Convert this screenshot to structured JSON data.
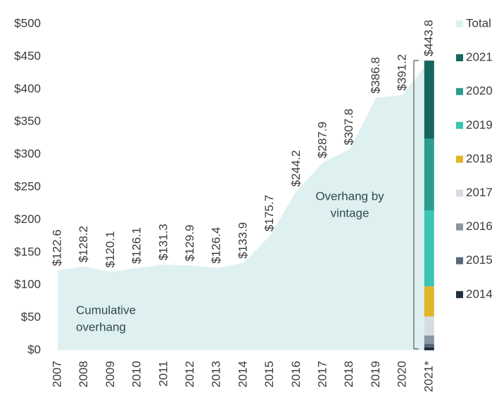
{
  "chart_data": {
    "type": "area",
    "categories": [
      "2007",
      "2008",
      "2009",
      "2010",
      "2011",
      "2012",
      "2013",
      "2014",
      "2015",
      "2016",
      "2017",
      "2018",
      "2019",
      "2020",
      "2021*"
    ],
    "series": [
      {
        "name": "Total",
        "color": "#dff0f0",
        "values": [
          122.6,
          128.2,
          120.1,
          126.1,
          131.3,
          129.9,
          126.4,
          133.9,
          175.7,
          244.2,
          287.9,
          307.8,
          386.8,
          391.2,
          443.8
        ],
        "value_labels": [
          "$122.6",
          "$128.2",
          "$120.1",
          "$126.1",
          "$131.3",
          "$129.9",
          "$126.4",
          "$133.9",
          "$175.7",
          "$244.2",
          "$287.9",
          "$307.8",
          "$386.8",
          "$391.2",
          "$443.8"
        ]
      },
      {
        "name": "2021",
        "color": "#14665e",
        "values": [
          null,
          null,
          null,
          null,
          null,
          null,
          null,
          null,
          null,
          null,
          null,
          null,
          null,
          null,
          119.5
        ]
      },
      {
        "name": "2020",
        "color": "#2a9d8f",
        "values": [
          null,
          null,
          null,
          null,
          null,
          null,
          null,
          null,
          null,
          null,
          null,
          null,
          null,
          null,
          109.9
        ]
      },
      {
        "name": "2019",
        "color": "#3cc4b4",
        "values": [
          null,
          null,
          null,
          null,
          null,
          null,
          null,
          null,
          null,
          null,
          null,
          null,
          null,
          null,
          116.4
        ]
      },
      {
        "name": "2018",
        "color": "#e0b52a",
        "values": [
          null,
          null,
          null,
          null,
          null,
          null,
          null,
          null,
          null,
          null,
          null,
          null,
          null,
          null,
          46.3
        ]
      },
      {
        "name": "2017",
        "color": "#d6dce3",
        "values": [
          null,
          null,
          null,
          null,
          null,
          null,
          null,
          null,
          null,
          null,
          null,
          null,
          null,
          null,
          29.1
        ]
      },
      {
        "name": "2016",
        "color": "#8a96a3",
        "values": [
          null,
          null,
          null,
          null,
          null,
          null,
          null,
          null,
          null,
          null,
          null,
          null,
          null,
          null,
          12.9
        ]
      },
      {
        "name": "2015",
        "color": "#56687a",
        "values": [
          null,
          null,
          null,
          null,
          null,
          null,
          null,
          null,
          null,
          null,
          null,
          null,
          null,
          null,
          5.4
        ]
      },
      {
        "name": "2014",
        "color": "#1f2d3d",
        "values": [
          null,
          null,
          null,
          null,
          null,
          null,
          null,
          null,
          null,
          null,
          null,
          null,
          null,
          null,
          4.3
        ]
      }
    ],
    "ylim": [
      0,
      500
    ],
    "yticks": [
      {
        "value": 0,
        "label": "$0"
      },
      {
        "value": 50,
        "label": "$50"
      },
      {
        "value": 100,
        "label": "$100"
      },
      {
        "value": 150,
        "label": "$150"
      },
      {
        "value": 200,
        "label": "$200"
      },
      {
        "value": 250,
        "label": "$250"
      },
      {
        "value": 300,
        "label": "$300"
      },
      {
        "value": 350,
        "label": "$350"
      },
      {
        "value": 400,
        "label": "$400"
      },
      {
        "value": 450,
        "label": "$450"
      },
      {
        "value": 500,
        "label": "$500"
      }
    ],
    "annotations": [
      {
        "lines": [
          "Cumulative",
          "overhang"
        ]
      },
      {
        "lines": [
          "Overhang by",
          "vintage"
        ]
      }
    ],
    "legend": "right"
  }
}
